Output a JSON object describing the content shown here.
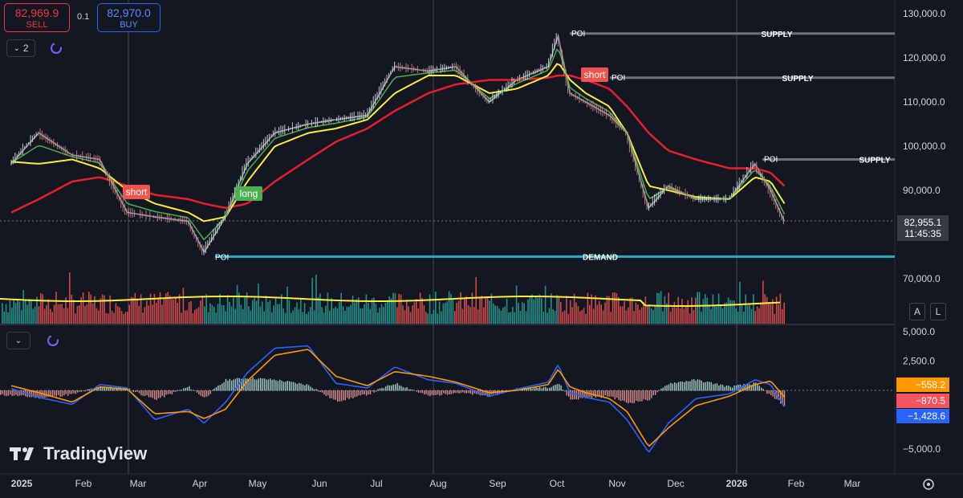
{
  "header": {
    "sell_price": "82,969.9",
    "sell_label": "SELL",
    "spread": "0.1",
    "buy_price": "82,970.0",
    "buy_label": "BUY",
    "collapse_count": "2"
  },
  "colors": {
    "background": "#131722",
    "up": "#26a69a",
    "down": "#ef5350",
    "ema_long": "#e91e2c",
    "ema_mid": "#ffeb3b",
    "ema_fast": "#4caf50",
    "macd": "#2962ff",
    "signal": "#ff9800",
    "demand": "#26c6da"
  },
  "price_axis": {
    "ticks": [
      "130,000.0",
      "120,000.0",
      "110,000.0",
      "100,000.0",
      "90,000.0",
      "70,000.0"
    ],
    "current_price": "82,955.1",
    "countdown": "11:45:35"
  },
  "indicator_axis": {
    "ticks": [
      "5,000.0",
      "2,500.0",
      "−5,000.0"
    ],
    "labels": [
      "−558.2",
      "−870.5",
      "−1,428.6"
    ]
  },
  "time_axis": {
    "labels": [
      "2025",
      "Feb",
      "Mar",
      "Apr",
      "May",
      "Jun",
      "Jul",
      "Aug",
      "Sep",
      "Oct",
      "Nov",
      "Dec",
      "2026",
      "Feb",
      "Mar"
    ]
  },
  "annotations": {
    "poi": "POI",
    "supply": "SUPPLY",
    "demand": "DEMAND",
    "short": "short",
    "long": "long"
  },
  "toolbar": {
    "auto_label": "A",
    "log_label": "L"
  },
  "brand": {
    "name": "TradingView"
  },
  "chart_data": {
    "type": "line",
    "x": [
      "2025-01-01",
      "2025-01-15",
      "2025-02-01",
      "2025-02-15",
      "2025-03-01",
      "2025-03-15",
      "2025-04-01",
      "2025-04-09",
      "2025-04-20",
      "2025-05-01",
      "2025-05-15",
      "2025-06-01",
      "2025-06-15",
      "2025-07-01",
      "2025-07-15",
      "2025-08-01",
      "2025-08-15",
      "2025-09-01",
      "2025-09-15",
      "2025-10-01",
      "2025-10-06",
      "2025-10-12",
      "2025-10-20",
      "2025-11-01",
      "2025-11-10",
      "2025-11-21",
      "2025-12-01",
      "2025-12-15",
      "2026-01-01",
      "2026-01-14",
      "2026-01-22",
      "2026-01-29"
    ],
    "series": [
      {
        "values": [
          96000,
          103000,
          98000,
          97000,
          85000,
          84000,
          83000,
          76000,
          84000,
          96000,
          103000,
          105000,
          106000,
          107000,
          118000,
          117000,
          118000,
          110000,
          115000,
          118000,
          125000,
          112000,
          110000,
          107000,
          103000,
          86000,
          91000,
          88000,
          88000,
          96000,
          90000,
          83000
        ]
      },
      {
        "values": [
          96500,
          96000,
          97000,
          95000,
          90000,
          87000,
          85000,
          83000,
          84000,
          92000,
          100000,
          103000,
          104000,
          106000,
          112000,
          116000,
          116000,
          112000,
          113000,
          116000,
          119000,
          115000,
          112000,
          109000,
          103000,
          91000,
          90000,
          88500,
          88000,
          93000,
          92000,
          87000
        ]
      },
      {
        "values": [
          85000,
          88000,
          92000,
          93000,
          91000,
          89000,
          88000,
          87000,
          86000,
          87000,
          92000,
          97000,
          101000,
          104000,
          108000,
          112000,
          114000,
          115000,
          115000,
          115500,
          116000,
          116000,
          115000,
          113000,
          109000,
          103000,
          99000,
          97000,
          95000,
          95000,
          94000,
          91000
        ]
      },
      {
        "values": [
          150,
          -600,
          -1200,
          500,
          200,
          -2500,
          -1600,
          -2800,
          -1000,
          1500,
          3600,
          3800,
          600,
          200,
          2000,
          900,
          600,
          -500,
          100,
          700,
          2200,
          -200,
          -600,
          -1000,
          -2500,
          -5300,
          -2800,
          -700,
          -300,
          900,
          500,
          -1400
        ]
      },
      {
        "values": [
          400,
          -200,
          -1000,
          300,
          100,
          -2000,
          -1800,
          -2400,
          -1600,
          800,
          3000,
          3500,
          1200,
          400,
          1600,
          1200,
          700,
          -200,
          0,
          500,
          1800,
          300,
          -200,
          -700,
          -1800,
          -4800,
          -3200,
          -1300,
          -500,
          500,
          800,
          -560
        ]
      }
    ],
    "price_levels": {
      "supply": [
        125500,
        115500,
        97000
      ],
      "demand": 75000
    },
    "ylim": [
      60000,
      132000
    ],
    "indicator_ylim": [
      -6500,
      5500
    ]
  }
}
